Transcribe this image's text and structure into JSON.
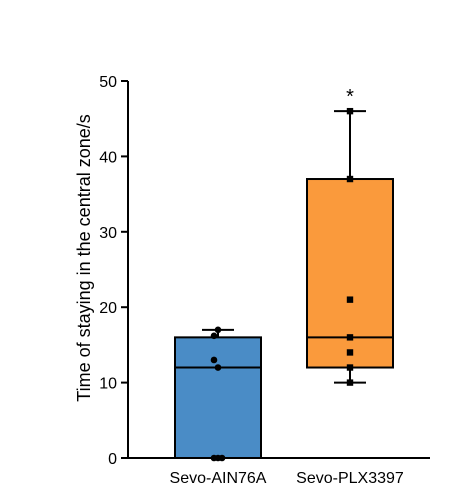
{
  "chart_data": {
    "type": "box",
    "title": "",
    "xlabel": "",
    "ylabel": "Time of staying in the central zone/s",
    "ylim": [
      0,
      50
    ],
    "yticks": [
      0,
      10,
      20,
      30,
      40,
      50
    ],
    "categories": [
      "Sevo-AIN76A",
      "Sevo-PLX3397"
    ],
    "series": [
      {
        "category": "Sevo-AIN76A",
        "color": "#4a8cc6",
        "points": [
          17,
          16.2,
          13,
          12,
          0,
          0,
          0
        ],
        "whisker_low": 0,
        "q1": 0,
        "median": 12,
        "q3": 16,
        "whisker_high": 17,
        "marker": "circle"
      },
      {
        "category": "Sevo-PLX3397",
        "color": "#fa9a3c",
        "points": [
          46,
          37,
          21,
          16,
          14,
          12,
          10
        ],
        "whisker_low": 10,
        "q1": 12,
        "median": 16,
        "q3": 37,
        "whisker_high": 46,
        "marker": "square",
        "annotation": "*"
      }
    ],
    "grid": false,
    "legend": "none"
  }
}
